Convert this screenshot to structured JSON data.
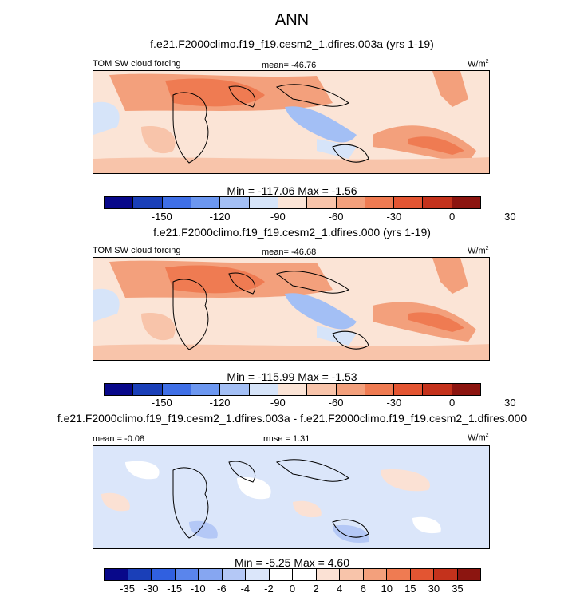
{
  "title": "ANN",
  "units_base": "W/m",
  "units_exp": "2",
  "panels": [
    {
      "case_title": "f.e21.F2000climo.f19_f19.cesm2_1.dfires.003a (yrs 1-19)",
      "left_label": "TOM SW cloud forcing",
      "center_label": "mean= -46.76",
      "minmax": "Min = -117.06 Max =  -1.56",
      "colorbar_ticks": [
        "-150",
        "-120",
        "-90",
        "-60",
        "-30",
        "0",
        "30"
      ]
    },
    {
      "case_title": "f.e21.F2000climo.f19_f19.cesm2_1.dfires.000 (yrs 1-19)",
      "left_label": "TOM SW cloud forcing",
      "center_label": "mean= -46.68",
      "minmax": "Min = -115.99 Max =  -1.53",
      "colorbar_ticks": [
        "-150",
        "-120",
        "-90",
        "-60",
        "-30",
        "0",
        "30"
      ]
    },
    {
      "case_title": "f.e21.F2000climo.f19_f19.cesm2_1.dfires.003a - f.e21.F2000climo.f19_f19.cesm2_1.dfires.000",
      "left_label": "mean =  -0.08",
      "center_label": "rmse =  1.31",
      "minmax": "Min =  -5.25 Max =   4.60",
      "colorbar_ticks": [
        "-35",
        "-30",
        "-15",
        "-10",
        "-6",
        "-4",
        "-2",
        "0",
        "2",
        "4",
        "6",
        "10",
        "15",
        "30",
        "35"
      ]
    }
  ],
  "colors": {
    "abs_cmap": [
      "#08088a",
      "#1a3fb8",
      "#3f6fe6",
      "#6c97f0",
      "#a3bff5",
      "#d6e4f9",
      "#fbe4d6",
      "#f8c4aa",
      "#f3a07c",
      "#ef7b52",
      "#e35532",
      "#c4321c",
      "#8c1510"
    ],
    "diff_cmap": [
      "#08088a",
      "#1a3fb8",
      "#3060e0",
      "#5a85ec",
      "#86a6f1",
      "#b4c8f6",
      "#dbe6fa",
      "#ffffff",
      "#ffffff",
      "#fbe1d4",
      "#f8c4aa",
      "#f3a07c",
      "#ef7b52",
      "#e35532",
      "#c4321c",
      "#8c1510"
    ]
  }
}
